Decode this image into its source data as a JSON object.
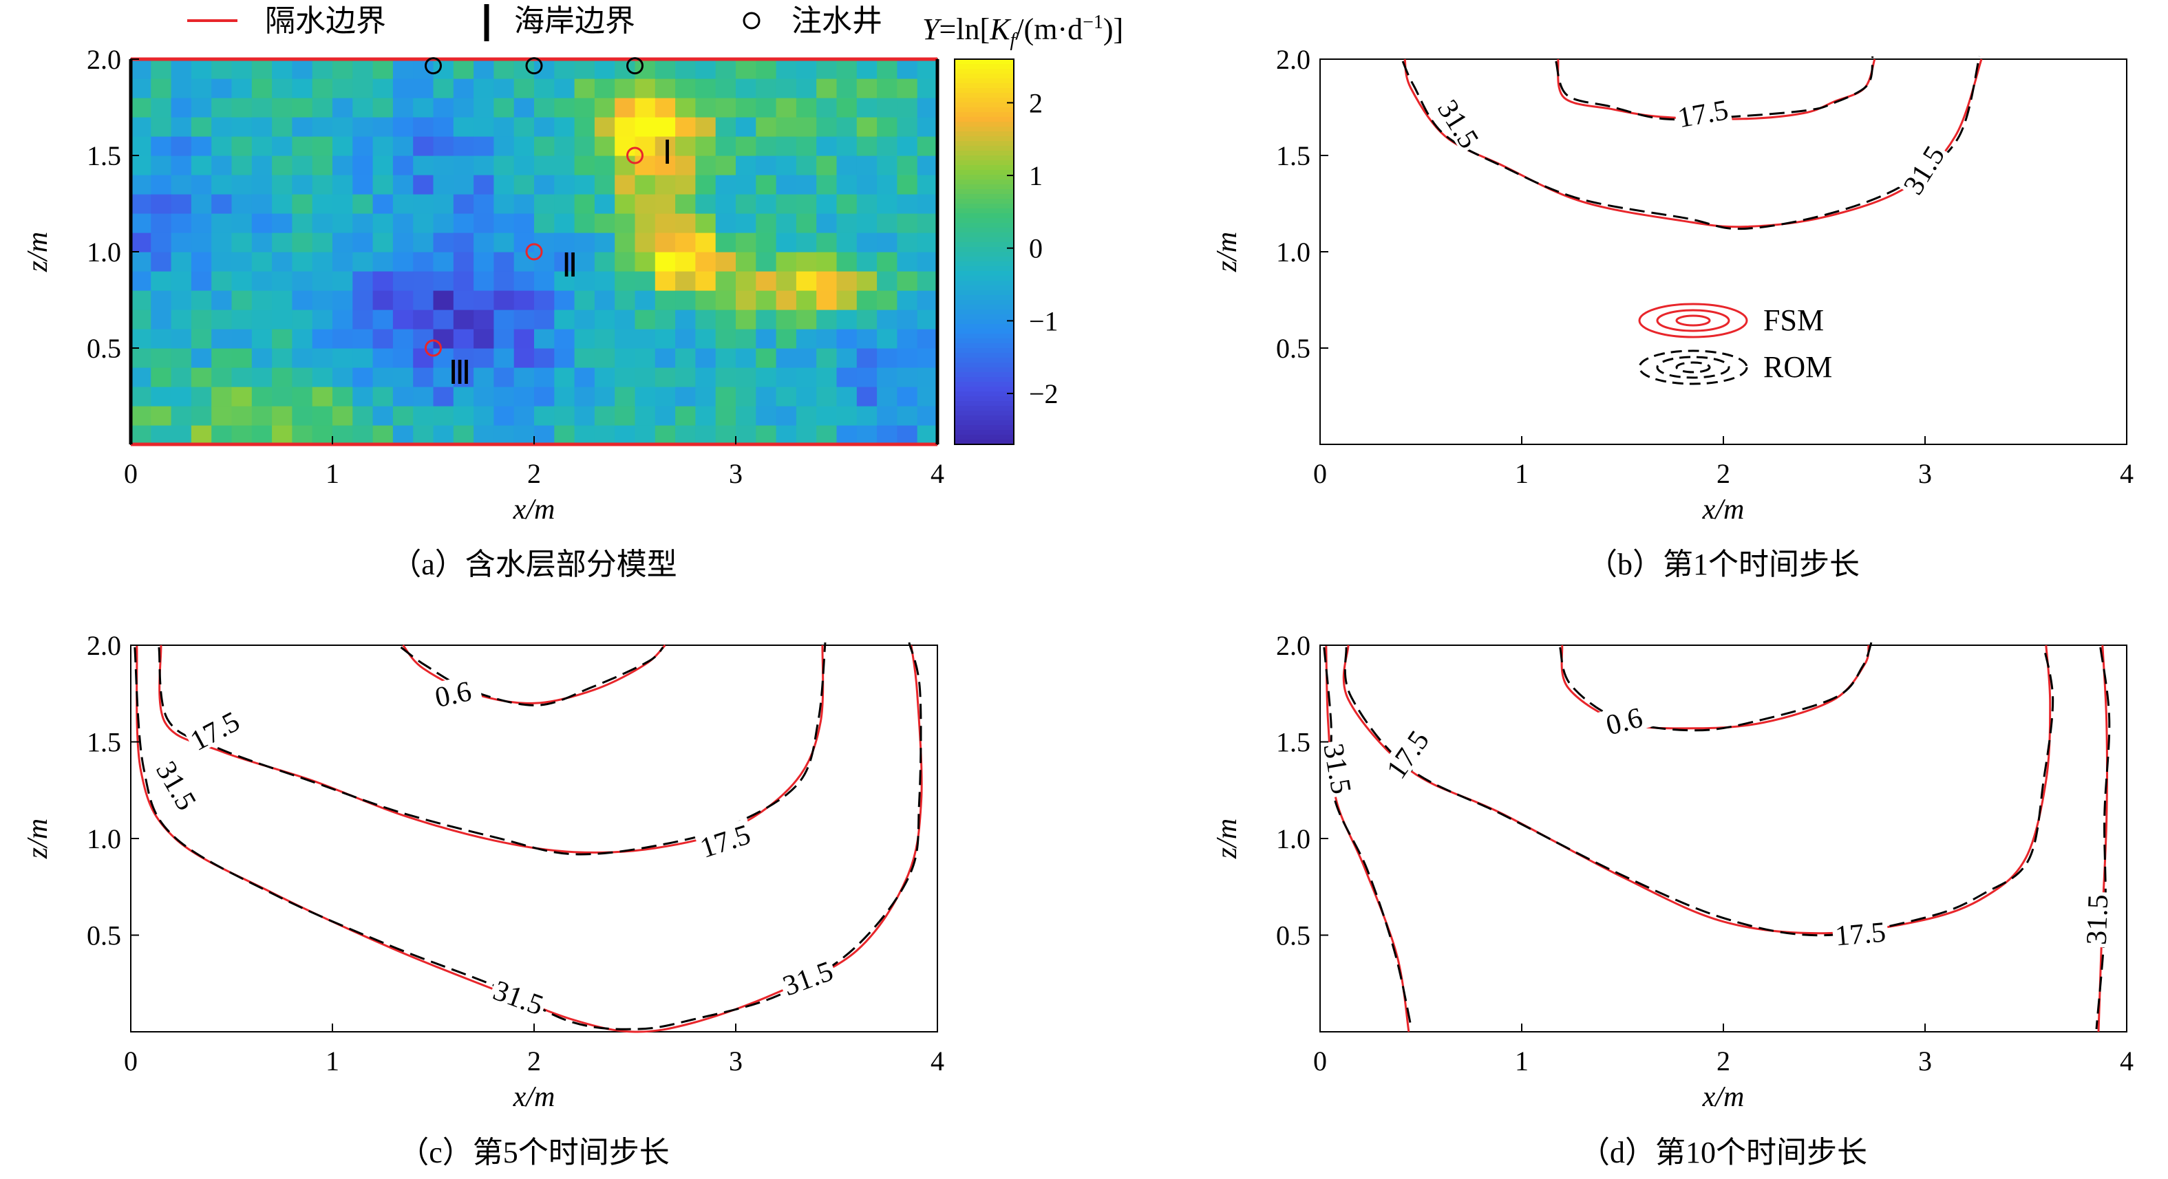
{
  "legend_top": {
    "barrier": "隔水边界",
    "coast": "海岸边界",
    "well": "注水井",
    "colorbar_title": "Y=ln[Kf/(m·d⁻¹)]",
    "barrier_color": "#e8262b",
    "coast_color": "#000000"
  },
  "zone_labels": [
    "Ⅰ",
    "Ⅱ",
    "Ⅲ"
  ],
  "legend_b": {
    "fsm": "FSM",
    "rom": "ROM",
    "fsm_color": "#e8262b",
    "rom_color": "#000000"
  },
  "chart_data": [
    {
      "id": "a",
      "type": "heatmap",
      "caption": "（a）含水层部分模型",
      "xlabel": "x/m",
      "ylabel": "z/m",
      "xlim": [
        0,
        4
      ],
      "ylim": [
        0,
        2
      ],
      "xticks": [
        "0",
        "1",
        "2",
        "3",
        "4"
      ],
      "yticks": [
        "0.5",
        "1.0",
        "1.5",
        "2.0"
      ],
      "colorbar": {
        "ticks": [
          "2",
          "1",
          "0",
          "−1",
          "−2"
        ],
        "range": [
          -2.7,
          2.6
        ]
      },
      "wells": [
        {
          "x": 1.5,
          "z": 1.98
        },
        {
          "x": 2.0,
          "z": 1.98
        },
        {
          "x": 2.5,
          "z": 1.98
        }
      ],
      "monitor_points": [
        {
          "x": 2.5,
          "z": 1.5,
          "label": "Ⅰ"
        },
        {
          "x": 2.0,
          "z": 1.0,
          "label": "Ⅱ"
        },
        {
          "x": 1.5,
          "z": 0.5,
          "label": "Ⅲ"
        }
      ]
    },
    {
      "id": "b",
      "type": "line",
      "caption": "（b）第1个时间步长",
      "xlabel": "x/m",
      "ylabel": "z/m",
      "xlim": [
        0,
        4
      ],
      "ylim": [
        0,
        2
      ],
      "xticks": [
        "0",
        "1",
        "2",
        "3",
        "4"
      ],
      "yticks": [
        "0.5",
        "1.0",
        "1.5",
        "2.0"
      ],
      "contours": [
        {
          "level": "31.5",
          "points": [
            [
              0.42,
              2.0
            ],
            [
              0.45,
              1.85
            ],
            [
              0.62,
              1.6
            ],
            [
              0.9,
              1.45
            ],
            [
              1.3,
              1.26
            ],
            [
              1.8,
              1.16
            ],
            [
              2.1,
              1.13
            ],
            [
              2.5,
              1.18
            ],
            [
              2.9,
              1.33
            ],
            [
              3.15,
              1.6
            ],
            [
              3.28,
              2.0
            ]
          ],
          "labels": [
            {
              "x": 0.68,
              "y": 1.66,
              "rot": 58
            },
            {
              "x": 3.0,
              "y": 1.42,
              "rot": -58
            }
          ]
        },
        {
          "level": "17.5",
          "points": [
            [
              1.18,
              2.0
            ],
            [
              1.21,
              1.8
            ],
            [
              1.45,
              1.74
            ],
            [
              1.7,
              1.7
            ],
            [
              2.1,
              1.69
            ],
            [
              2.4,
              1.72
            ],
            [
              2.55,
              1.78
            ],
            [
              2.7,
              1.85
            ],
            [
              2.75,
              2.0
            ]
          ],
          "labels": [
            {
              "x": 1.9,
              "y": 1.71,
              "rot": -10
            }
          ]
        }
      ]
    },
    {
      "id": "c",
      "type": "line",
      "caption": "（c）第5个时间步长",
      "xlabel": "x/m",
      "ylabel": "z/m",
      "xlim": [
        0,
        4
      ],
      "ylim": [
        0,
        2
      ],
      "xticks": [
        "0",
        "1",
        "2",
        "3",
        "4"
      ],
      "yticks": [
        "0.5",
        "1.0",
        "1.5",
        "2.0"
      ],
      "contours": [
        {
          "level": "31.5",
          "points": [
            [
              0.03,
              2.0
            ],
            [
              0.05,
              1.35
            ],
            [
              0.22,
              1.0
            ],
            [
              0.7,
              0.72
            ],
            [
              1.3,
              0.43
            ],
            [
              1.8,
              0.22
            ],
            [
              2.2,
              0.06
            ],
            [
              2.5,
              0.0
            ],
            [
              2.8,
              0.05
            ],
            [
              3.2,
              0.2
            ],
            [
              3.6,
              0.42
            ],
            [
              3.85,
              0.8
            ],
            [
              3.92,
              1.2
            ],
            [
              3.9,
              1.75
            ],
            [
              3.87,
              2.0
            ]
          ],
          "labels": [
            {
              "x": 0.22,
              "y": 1.27,
              "rot": 60
            },
            {
              "x": 1.92,
              "y": 0.17,
              "rot": 20
            },
            {
              "x": 3.36,
              "y": 0.27,
              "rot": -20
            }
          ]
        },
        {
          "level": "17.5",
          "points": [
            [
              0.15,
              2.0
            ],
            [
              0.17,
              1.6
            ],
            [
              0.45,
              1.45
            ],
            [
              0.9,
              1.3
            ],
            [
              1.35,
              1.12
            ],
            [
              1.8,
              0.99
            ],
            [
              2.2,
              0.93
            ],
            [
              2.6,
              0.95
            ],
            [
              3.0,
              1.06
            ],
            [
              3.3,
              1.3
            ],
            [
              3.42,
              1.6
            ],
            [
              3.43,
              2.0
            ]
          ],
          "labels": [
            {
              "x": 0.42,
              "y": 1.55,
              "rot": -28
            },
            {
              "x": 2.95,
              "y": 0.98,
              "rot": -18
            }
          ]
        },
        {
          "level": "0.6",
          "points": [
            [
              1.35,
              2.0
            ],
            [
              1.45,
              1.88
            ],
            [
              1.7,
              1.75
            ],
            [
              2.0,
              1.7
            ],
            [
              2.3,
              1.77
            ],
            [
              2.55,
              1.9
            ],
            [
              2.65,
              2.0
            ]
          ],
          "labels": [
            {
              "x": 1.6,
              "y": 1.74,
              "rot": -12
            }
          ]
        }
      ]
    },
    {
      "id": "d",
      "type": "line",
      "caption": "（d）第10个时间步长",
      "xlabel": "x/m",
      "ylabel": "z/m",
      "xlim": [
        0,
        4
      ],
      "ylim": [
        0,
        2
      ],
      "xticks": [
        "0",
        "1",
        "2",
        "3",
        "4"
      ],
      "yticks": [
        "0.5",
        "1.0",
        "1.5",
        "2.0"
      ],
      "contours": [
        {
          "level": "31.5",
          "points": [
            [
              0.03,
              2.0
            ],
            [
              0.04,
              1.6
            ],
            [
              0.08,
              1.2
            ],
            [
              0.22,
              0.85
            ],
            [
              0.38,
              0.4
            ],
            [
              0.44,
              0.0
            ]
          ],
          "labels": [
            {
              "x": 0.08,
              "y": 1.36,
              "rot": 80
            }
          ]
        },
        {
          "level": "31.5",
          "points": [
            [
              3.88,
              2.0
            ],
            [
              3.9,
              1.6
            ],
            [
              3.9,
              1.1
            ],
            [
              3.88,
              0.6
            ],
            [
              3.86,
              0.0
            ]
          ],
          "labels": [
            {
              "x": 3.86,
              "y": 0.58,
              "rot": -88
            }
          ]
        },
        {
          "level": "17.5",
          "points": [
            [
              0.14,
              2.0
            ],
            [
              0.14,
              1.72
            ],
            [
              0.45,
              1.35
            ],
            [
              0.9,
              1.13
            ],
            [
              1.5,
              0.8
            ],
            [
              2.0,
              0.57
            ],
            [
              2.5,
              0.51
            ],
            [
              3.0,
              0.58
            ],
            [
              3.3,
              0.7
            ],
            [
              3.5,
              0.9
            ],
            [
              3.6,
              1.3
            ],
            [
              3.62,
              1.7
            ],
            [
              3.6,
              2.0
            ]
          ],
          "labels": [
            {
              "x": 0.44,
              "y": 1.43,
              "rot": -55
            },
            {
              "x": 2.68,
              "y": 0.5,
              "rot": -5
            }
          ]
        },
        {
          "level": "0.6",
          "points": [
            [
              1.2,
              2.0
            ],
            [
              1.23,
              1.78
            ],
            [
              1.5,
              1.6
            ],
            [
              1.85,
              1.57
            ],
            [
              2.2,
              1.6
            ],
            [
              2.55,
              1.72
            ],
            [
              2.7,
              1.9
            ],
            [
              2.72,
              2.0
            ]
          ],
          "labels": [
            {
              "x": 1.51,
              "y": 1.6,
              "rot": -15
            }
          ]
        }
      ]
    }
  ]
}
